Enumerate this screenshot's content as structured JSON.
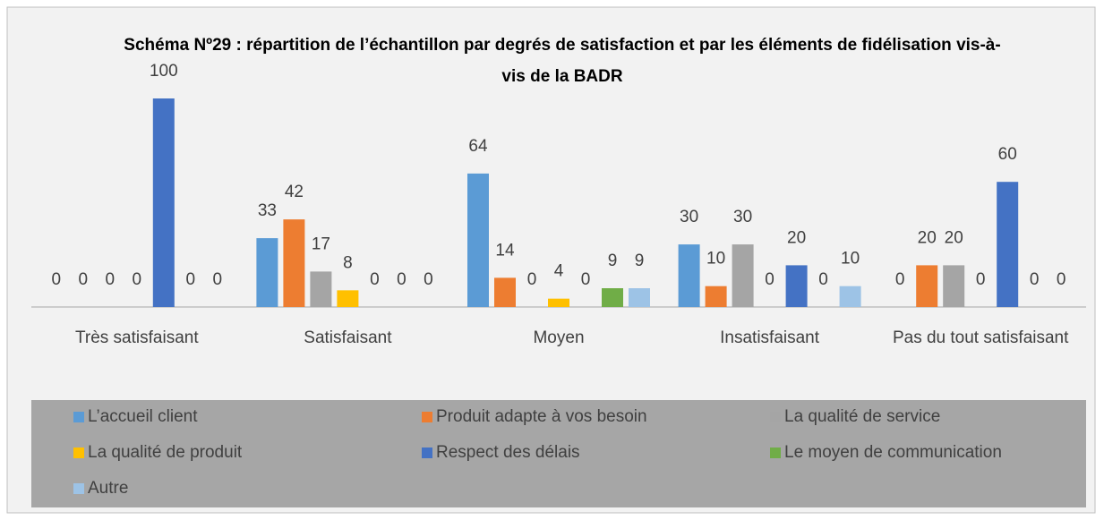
{
  "chart_data": {
    "type": "bar",
    "title": "Schéma Nº29 : répartition de l’échantillon par degrés de satisfaction et par les éléments de fidélisation vis-à-vis de la BADR",
    "categories": [
      "Très satisfaisant",
      "Satisfaisant",
      "Moyen",
      "Insatisfaisant",
      "Pas du tout satisfaisant"
    ],
    "series": [
      {
        "name": "L’accueil client",
        "color": "#5b9bd5",
        "values": [
          0,
          33,
          64,
          30,
          0
        ]
      },
      {
        "name": "Produit adapte à vos besoin",
        "color": "#ed7d31",
        "values": [
          0,
          42,
          14,
          10,
          20
        ]
      },
      {
        "name": "La qualité de service",
        "color": "#a5a5a5",
        "values": [
          0,
          17,
          0,
          30,
          20
        ]
      },
      {
        "name": "La qualité de produit",
        "color": "#ffc000",
        "values": [
          0,
          8,
          4,
          0,
          0
        ]
      },
      {
        "name": "Respect des délais",
        "color": "#4472c4",
        "values": [
          100,
          0,
          0,
          20,
          60
        ]
      },
      {
        "name": "Le moyen de communication",
        "color": "#70ad47",
        "values": [
          0,
          0,
          9,
          0,
          0
        ]
      },
      {
        "name": "Autre",
        "color": "#9dc3e6",
        "values": [
          0,
          0,
          9,
          10,
          0
        ]
      }
    ],
    "legend": "bottom"
  }
}
